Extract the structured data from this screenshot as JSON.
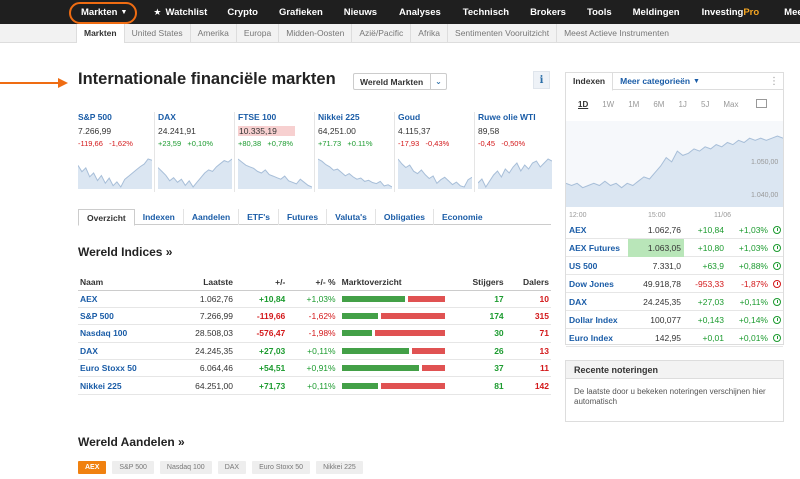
{
  "topnav": {
    "items": [
      {
        "label": "Markten",
        "chevron": true
      },
      {
        "label": "Watchlist",
        "star": true
      },
      {
        "label": "Crypto"
      },
      {
        "label": "Grafieken"
      },
      {
        "label": "Nieuws"
      },
      {
        "label": "Analyses"
      },
      {
        "label": "Technisch"
      },
      {
        "label": "Brokers"
      },
      {
        "label": "Tools"
      },
      {
        "label": "Meldingen"
      },
      {
        "label": "Investing",
        "suffix": "Pro"
      },
      {
        "label": "Meer",
        "chevron": true
      }
    ]
  },
  "subnav": {
    "items": [
      "Markten",
      "United States",
      "Amerika",
      "Europa",
      "Midden-Oosten",
      "Azië/Pacific",
      "Afrika",
      "Sentimenten Vooruitzicht",
      "Meest Actieve Instrumenten"
    ]
  },
  "page": {
    "title": "Internationale financiële markten",
    "select_label": "Wereld Markten",
    "info": "i"
  },
  "tickers": [
    {
      "name": "S&P 500",
      "value": "7.266,99",
      "change": "-119,66",
      "pct": "-1,62%",
      "dir": "neg",
      "spark": [
        62,
        52,
        58,
        44,
        50,
        38,
        46,
        34,
        42,
        30,
        36,
        28,
        40,
        45,
        50,
        55,
        60,
        64,
        72,
        70
      ]
    },
    {
      "name": "DAX",
      "value": "24.241,91",
      "change": "+23,59",
      "pct": "+0,10%",
      "dir": "pos",
      "spark": [
        65,
        60,
        55,
        48,
        52,
        46,
        50,
        42,
        48,
        40,
        46,
        52,
        58,
        62,
        60,
        66,
        70,
        74,
        72,
        76
      ]
    },
    {
      "name": "FTSE 100",
      "value": "10.335,19",
      "change": "+80,38",
      "pct": "+0,78%",
      "dir": "pos",
      "highlight": true,
      "spark": [
        60,
        56,
        52,
        50,
        48,
        44,
        42,
        46,
        40,
        38,
        36,
        34,
        38,
        32,
        30,
        28,
        34,
        30,
        26,
        24
      ]
    },
    {
      "name": "Nikkei 225",
      "value": "64,251.00",
      "change": "+71.73",
      "pct": "+0.11%",
      "dir": "pos",
      "spark": [
        70,
        66,
        60,
        56,
        50,
        52,
        46,
        40,
        44,
        38,
        34,
        36,
        30,
        32,
        28,
        26,
        30,
        22,
        24,
        20
      ]
    },
    {
      "name": "Goud",
      "value": "4.115,37",
      "change": "-17,93",
      "pct": "-0,43%",
      "dir": "neg",
      "spark": [
        70,
        62,
        56,
        60,
        50,
        46,
        52,
        44,
        38,
        42,
        30,
        36,
        40,
        34,
        28,
        32,
        26,
        24,
        36,
        40
      ]
    },
    {
      "name": "Ruwe olie WTI",
      "value": "89,58",
      "change": "-0,45",
      "pct": "-0,50%",
      "dir": "neg",
      "spark": [
        50,
        54,
        46,
        52,
        58,
        62,
        56,
        64,
        60,
        66,
        70,
        62,
        68,
        64,
        70,
        72,
        66,
        70,
        74,
        72
      ]
    }
  ],
  "tabs": [
    "Overzicht",
    "Indexen",
    "Aandelen",
    "ETF's",
    "Futures",
    "Valuta's",
    "Obligaties",
    "Economie"
  ],
  "indices": {
    "title": "Wereld Indices »",
    "headers": [
      "Naam",
      "Laatste",
      "+/-",
      "+/- %",
      "Marktoverzicht",
      "Stijgers",
      "Dalers"
    ],
    "rows": [
      {
        "name": "AEX",
        "last": "1.062,76",
        "chg": "+10,84",
        "pct": "+1,03%",
        "dir": "pos",
        "up": "17",
        "down": "10",
        "breadth": 0.63
      },
      {
        "name": "S&P 500",
        "last": "7.266,99",
        "chg": "-119,66",
        "pct": "-1,62%",
        "dir": "neg",
        "up": "174",
        "down": "315",
        "breadth": 0.36
      },
      {
        "name": "Nasdaq 100",
        "last": "28.508,03",
        "chg": "-576,47",
        "pct": "-1,98%",
        "dir": "neg",
        "up": "30",
        "down": "71",
        "breadth": 0.3
      },
      {
        "name": "DAX",
        "last": "24.245,35",
        "chg": "+27,03",
        "pct": "+0,11%",
        "dir": "pos",
        "up": "26",
        "down": "13",
        "breadth": 0.67
      },
      {
        "name": "Euro Stoxx 50",
        "last": "6.064,46",
        "chg": "+54,51",
        "pct": "+0,91%",
        "dir": "pos",
        "up": "37",
        "down": "11",
        "breadth": 0.77
      },
      {
        "name": "Nikkei 225",
        "last": "64.251,00",
        "chg": "+71,73",
        "pct": "+0,11%",
        "dir": "pos",
        "up": "81",
        "down": "142",
        "breadth": 0.36
      }
    ]
  },
  "shares": {
    "title": "Wereld Aandelen »",
    "chips": [
      "AEX",
      "S&P 500",
      "Nasdaq 100",
      "DAX",
      "Euro Stoxx 50",
      "Nikkei 225"
    ]
  },
  "right": {
    "tab_active": "Indexen",
    "tab_more": "Meer categorieën",
    "periods": [
      "1D",
      "1W",
      "1M",
      "6M",
      "1J",
      "5J",
      "Max"
    ],
    "yticks": [
      "1.050,00",
      "1.040,00"
    ],
    "xticks": [
      "12:00",
      "15:00",
      "11/06"
    ],
    "chart_series": [
      1041,
      1040,
      1041,
      1039,
      1040,
      1041,
      1040,
      1042,
      1040,
      1041,
      1039,
      1041,
      1040,
      1042,
      1044,
      1043,
      1046,
      1049,
      1053,
      1051,
      1056,
      1054,
      1055,
      1057,
      1056,
      1058,
      1057,
      1059,
      1058,
      1060,
      1059,
      1061,
      1060,
      1062,
      1061,
      1062,
      1061,
      1062,
      1063,
      1062
    ],
    "rows": [
      {
        "name": "AEX",
        "last": "1.062,76",
        "chg": "+10,84",
        "pct": "+1,03%",
        "dir": "pos"
      },
      {
        "name": "AEX Futures",
        "last": "1.063,05",
        "chg": "+10,80",
        "pct": "+1,03%",
        "dir": "pos",
        "highlight": true
      },
      {
        "name": "US 500",
        "last": "7.331,0",
        "chg": "+63,9",
        "pct": "+0,88%",
        "dir": "pos"
      },
      {
        "name": "Dow Jones",
        "last": "49.918,78",
        "chg": "-953,33",
        "pct": "-1,87%",
        "dir": "neg"
      },
      {
        "name": "DAX",
        "last": "24.245,35",
        "chg": "+27,03",
        "pct": "+0,11%",
        "dir": "pos"
      },
      {
        "name": "Dollar Index",
        "last": "100,077",
        "chg": "+0,143",
        "pct": "+0,14%",
        "dir": "pos"
      },
      {
        "name": "Euro Index",
        "last": "142,95",
        "chg": "+0,01",
        "pct": "+0,01%",
        "dir": "pos"
      }
    ]
  },
  "recent": {
    "title": "Recente noteringen",
    "text": "De laatste door u bekeken noteringen verschijnen hier automatisch"
  }
}
